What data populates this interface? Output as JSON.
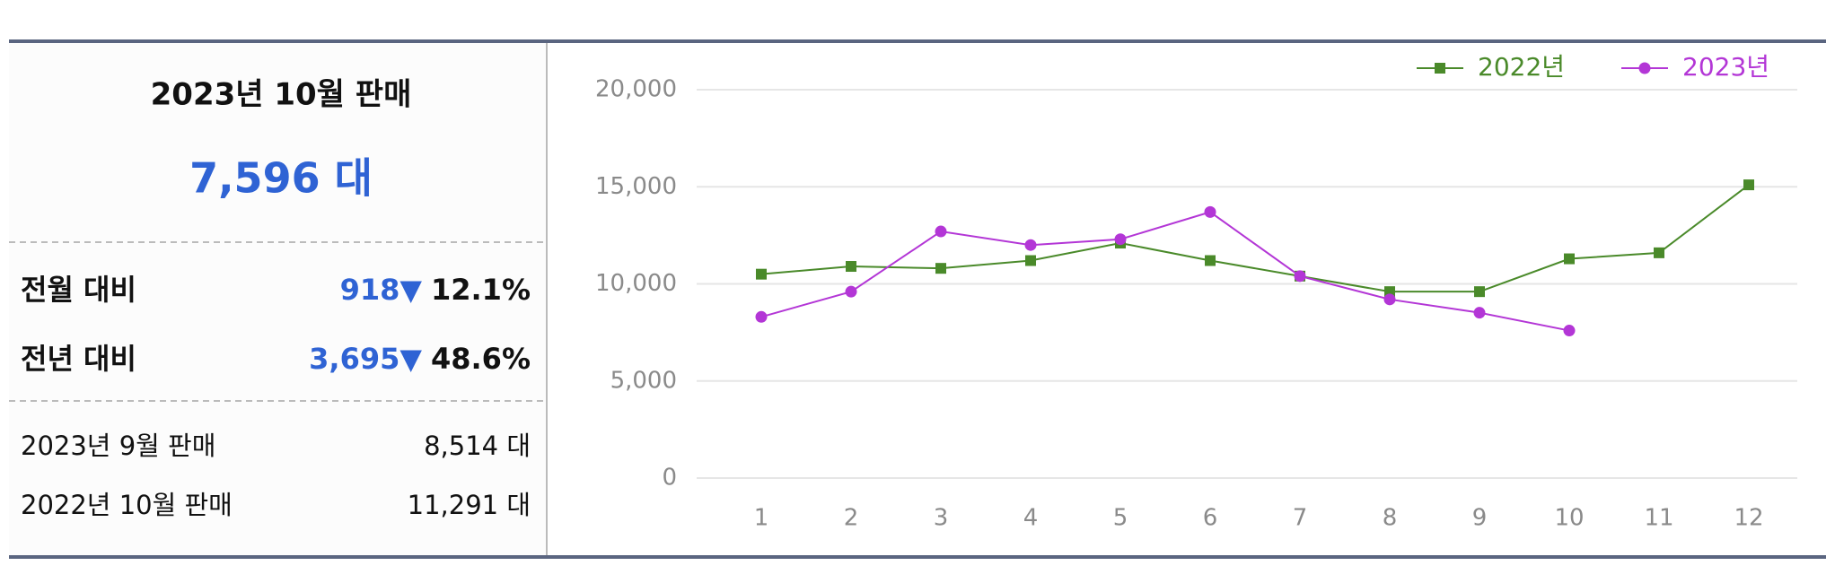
{
  "panel": {
    "title": "2023년 10월 판매",
    "total": "7,596 대",
    "rows": [
      {
        "label": "전월 대비",
        "change": "918▼",
        "percent": "12.1%"
      },
      {
        "label": "전년 대비",
        "change": "3,695▼",
        "percent": "48.6%"
      }
    ],
    "history": [
      {
        "label": "2023년 9월 판매",
        "value": "8,514 대"
      },
      {
        "label": "2022년 10월 판매",
        "value": "11,291 대"
      }
    ]
  },
  "chart_data": {
    "type": "line",
    "categories": [
      "1",
      "2",
      "3",
      "4",
      "5",
      "6",
      "7",
      "8",
      "9",
      "10",
      "11",
      "12"
    ],
    "series": [
      {
        "name": "2022년",
        "color": "#4a8a2a",
        "marker": "square",
        "values": [
          10500,
          10900,
          10800,
          11200,
          12100,
          11200,
          10400,
          9600,
          9600,
          11291,
          11600,
          15100
        ]
      },
      {
        "name": "2023년",
        "color": "#b336d6",
        "marker": "circle",
        "values": [
          8300,
          9600,
          12700,
          12000,
          12300,
          13700,
          10400,
          9200,
          8514,
          7596,
          null,
          null
        ]
      }
    ],
    "ylim": [
      0,
      20000
    ],
    "yticks": [
      {
        "value": 0,
        "label": "0"
      },
      {
        "value": 5000,
        "label": "5,000"
      },
      {
        "value": 10000,
        "label": "10,000"
      },
      {
        "value": 15000,
        "label": "15,000"
      },
      {
        "value": 20000,
        "label": "20,000"
      }
    ],
    "grid": true,
    "legend": "top-right"
  }
}
